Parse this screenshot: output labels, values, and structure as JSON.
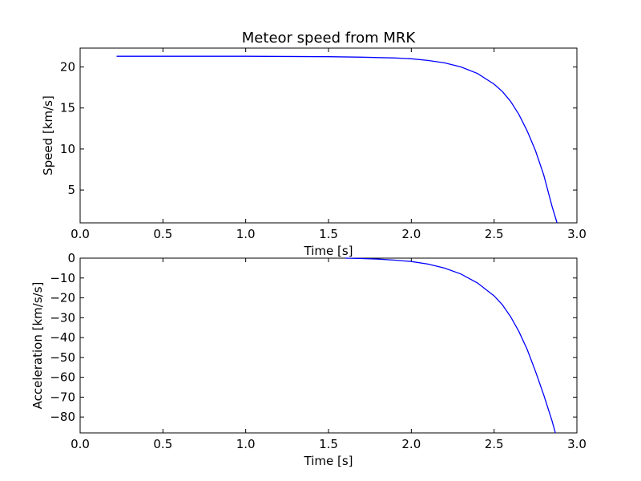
{
  "chart_data": [
    {
      "type": "line",
      "title": "Meteor speed from  MRK",
      "xlabel": "Time [s]",
      "ylabel": "Speed [km/s]",
      "xlim": [
        0.0,
        3.0
      ],
      "ylim": [
        1.0,
        22.3
      ],
      "xticks": [
        "0.0",
        "0.5",
        "1.0",
        "1.5",
        "2.0",
        "2.5",
        "3.0"
      ],
      "yticks": [
        "5",
        "10",
        "15",
        "20"
      ],
      "color": "#0000ff",
      "series": [
        {
          "x": [
            0.22,
            0.5,
            1.0,
            1.5,
            1.7,
            1.9,
            2.0,
            2.1,
            2.2,
            2.3,
            2.4,
            2.5,
            2.55,
            2.6,
            2.65,
            2.7,
            2.75,
            2.8,
            2.85,
            2.88
          ],
          "y": [
            21.3,
            21.3,
            21.3,
            21.25,
            21.2,
            21.1,
            21.0,
            20.8,
            20.5,
            20.0,
            19.2,
            17.9,
            17.0,
            15.8,
            14.2,
            12.2,
            9.8,
            6.8,
            3.0,
            0.9
          ]
        }
      ]
    },
    {
      "type": "line",
      "title": "",
      "xlabel": "Time [s]",
      "ylabel": "Acceleration [km/s/s]",
      "xlim": [
        0.0,
        3.0
      ],
      "ylim": [
        -88,
        0
      ],
      "xticks": [
        "0.0",
        "0.5",
        "1.0",
        "1.5",
        "2.0",
        "2.5",
        "3.0"
      ],
      "yticks": [
        "0",
        "−10",
        "−20",
        "−30",
        "−40",
        "−50",
        "−60",
        "−70",
        "−80"
      ],
      "color": "#0000ff",
      "series": [
        {
          "x": [
            1.6,
            1.7,
            1.8,
            1.9,
            2.0,
            2.1,
            2.2,
            2.3,
            2.4,
            2.5,
            2.55,
            2.6,
            2.65,
            2.7,
            2.75,
            2.8,
            2.85,
            2.87
          ],
          "y": [
            0.0,
            -0.2,
            -0.5,
            -1.0,
            -1.7,
            -3.0,
            -5.0,
            -8.0,
            -12.5,
            -19.0,
            -23.5,
            -29.5,
            -37.0,
            -46.0,
            -57.0,
            -69.0,
            -82.0,
            -88.0
          ]
        }
      ]
    }
  ]
}
